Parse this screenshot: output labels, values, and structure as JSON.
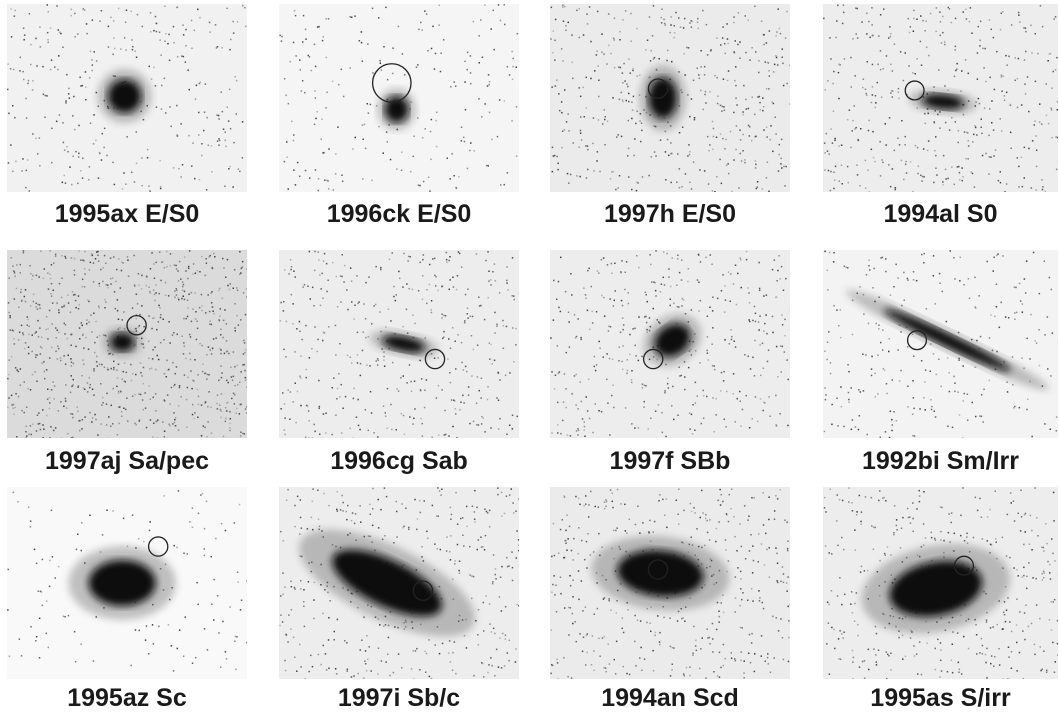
{
  "panels": [
    {
      "label": "1995ax E/S0"
    },
    {
      "label": "1996ck E/S0"
    },
    {
      "label": "1997h E/S0"
    },
    {
      "label": "1994al S0"
    },
    {
      "label": "1997aj Sa/pec"
    },
    {
      "label": "1996cg Sab"
    },
    {
      "label": "1997f SBb"
    },
    {
      "label": "1992bi Sm/Irr"
    },
    {
      "label": "1995az Sc"
    },
    {
      "label": "1997i Sb/c"
    },
    {
      "label": "1994an Scd"
    },
    {
      "label": "1995as S/irr"
    }
  ],
  "colors": {
    "background": "#ffffff",
    "galaxy": "#111111",
    "caption": "#1a1a1a"
  }
}
